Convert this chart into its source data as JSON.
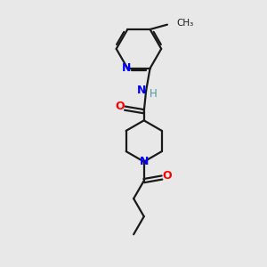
{
  "bg_color": "#e8e8e8",
  "bond_color": "#1a1a1a",
  "N_color": "#0000ff",
  "O_color": "#ff0000",
  "H_color": "#4a9a9a",
  "line_width": 1.6,
  "figsize": [
    3.0,
    3.0
  ],
  "dpi": 100,
  "xlim": [
    0,
    10
  ],
  "ylim": [
    0,
    10
  ]
}
